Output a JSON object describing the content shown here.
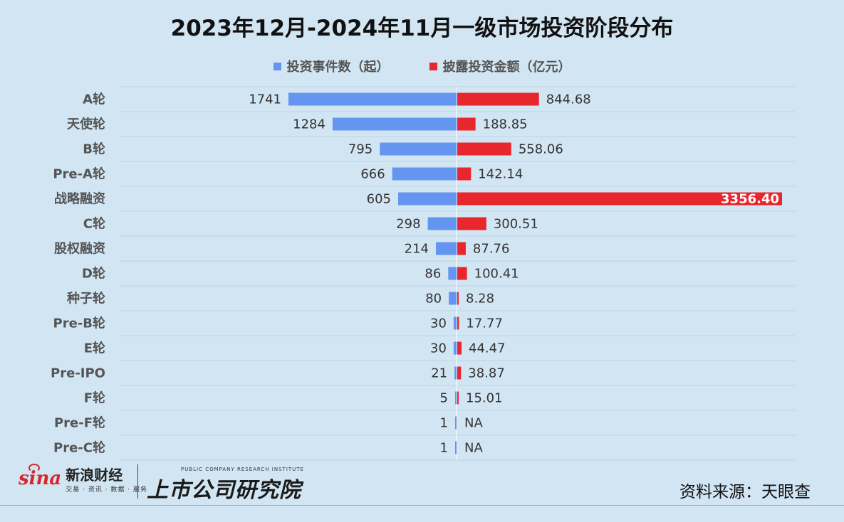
{
  "chart_data": {
    "type": "bar",
    "title": "2023年12月-2024年11月一级市场投资阶段分布",
    "categories": [
      "A轮",
      "天使轮",
      "B轮",
      "Pre-A轮",
      "战略融资",
      "C轮",
      "股权融资",
      "D轮",
      "种子轮",
      "Pre-B轮",
      "E轮",
      "Pre-IPO",
      "F轮",
      "Pre-F轮",
      "Pre-C轮"
    ],
    "series": [
      {
        "name": "投资事件数（起）",
        "color": "#6495f0",
        "values": [
          1741,
          1284,
          795,
          666,
          605,
          298,
          214,
          86,
          80,
          30,
          30,
          21,
          5,
          1,
          1
        ],
        "labels": [
          "1741",
          "1284",
          "795",
          "666",
          "605",
          "298",
          "214",
          "86",
          "80",
          "30",
          "30",
          "21",
          "5",
          "1",
          "1"
        ]
      },
      {
        "name": "披露投资金额（亿元）",
        "color": "#e8262d",
        "values": [
          844.68,
          188.85,
          558.06,
          142.14,
          3356.4,
          300.51,
          87.76,
          100.41,
          8.28,
          17.77,
          44.47,
          38.87,
          15.01,
          null,
          null
        ],
        "labels": [
          "844.68",
          "188.85",
          "558.06",
          "142.14",
          "3356.40",
          "300.51",
          "87.76",
          "100.41",
          "8.28",
          "17.77",
          "44.47",
          "38.87",
          "15.01",
          "NA",
          "NA"
        ]
      }
    ],
    "layout": "diverging-horizontal-bar",
    "grid": true,
    "legend_position": "top-center"
  },
  "footer": {
    "logo_sina_text": "sina",
    "logo_sina_cn": "新浪财经",
    "logo_sina_sub": "交易 · 资讯 · 数据 · 服务",
    "logo_inst_en": "PUBLIC COMPANY RESEARCH INSTITUTE",
    "logo_inst_cn": "上市公司研究院",
    "source": "资料来源：天眼查"
  }
}
